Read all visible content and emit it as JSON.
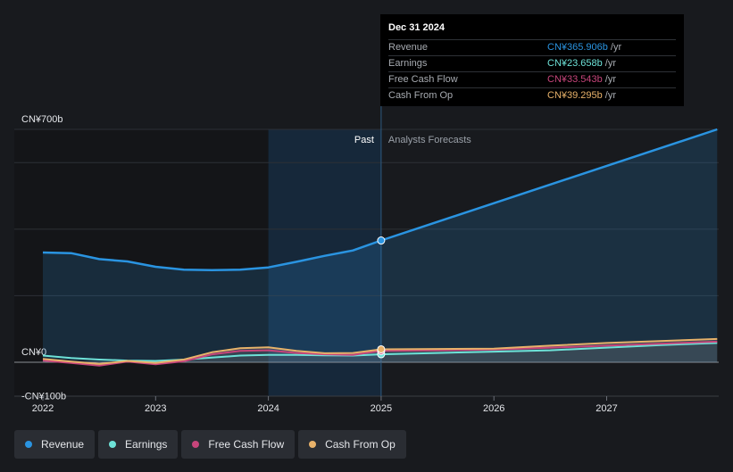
{
  "colors": {
    "revenue": "#2a94e1",
    "earnings": "#6ee2d8",
    "free_cash_flow": "#c7457b",
    "cash_from_op": "#e8b26a",
    "past_highlight": "#163552",
    "grid": "#2d3036",
    "text": "#d0d3d8"
  },
  "chart_data": {
    "type": "line",
    "title": "",
    "xlabel": "",
    "ylabel": "",
    "x_ticks": [
      "2022",
      "2023",
      "2024",
      "2025",
      "2026",
      "2027"
    ],
    "xlim": [
      2021.75,
      2027.98
    ],
    "ylim": [
      -100,
      700
    ],
    "y_ticks": [
      {
        "value": 700,
        "label": "CN¥700b"
      },
      {
        "value": 0,
        "label": "CN¥0"
      },
      {
        "value": -100,
        "label": "-CN¥100b"
      }
    ],
    "gridlines": [
      700,
      600,
      400,
      200
    ],
    "units": "CN¥ billions",
    "past_label": "Past",
    "forecast_label": "Analysts Forecasts",
    "past_end": 2025.0,
    "highlight_start": 2024.0,
    "series": [
      {
        "name": "Revenue",
        "key": "revenue",
        "values": [
          [
            2022.0,
            330
          ],
          [
            2022.25,
            328
          ],
          [
            2022.5,
            310
          ],
          [
            2022.75,
            303
          ],
          [
            2023.0,
            287
          ],
          [
            2023.25,
            278
          ],
          [
            2023.5,
            277
          ],
          [
            2023.75,
            278
          ],
          [
            2024.0,
            285
          ],
          [
            2024.25,
            302
          ],
          [
            2024.5,
            320
          ],
          [
            2024.75,
            336
          ],
          [
            2025.0,
            366
          ],
          [
            2025.25,
            390
          ],
          [
            2025.5,
            410
          ],
          [
            2026.0,
            453
          ],
          [
            2026.5,
            495
          ],
          [
            2027.0,
            538
          ],
          [
            2027.5,
            580
          ],
          [
            2027.98,
            700
          ]
        ],
        "forecast_line": [
          [
            2025.0,
            366
          ],
          [
            2027.98,
            700
          ]
        ]
      },
      {
        "name": "Earnings",
        "key": "earnings",
        "values": [
          [
            2022.0,
            20
          ],
          [
            2022.25,
            13
          ],
          [
            2022.5,
            8
          ],
          [
            2022.75,
            5
          ],
          [
            2023.0,
            4
          ],
          [
            2023.25,
            8
          ],
          [
            2023.5,
            14
          ],
          [
            2023.75,
            20
          ],
          [
            2024.0,
            22
          ],
          [
            2024.25,
            22
          ],
          [
            2024.5,
            21
          ],
          [
            2024.75,
            20
          ],
          [
            2025.0,
            24
          ],
          [
            2025.5,
            28
          ],
          [
            2026.0,
            32
          ],
          [
            2026.5,
            36
          ],
          [
            2027.0,
            44
          ],
          [
            2027.5,
            52
          ],
          [
            2027.98,
            58
          ]
        ]
      },
      {
        "name": "Free Cash Flow",
        "key": "free_cash_flow",
        "values": [
          [
            2022.0,
            5
          ],
          [
            2022.25,
            -2
          ],
          [
            2022.5,
            -10
          ],
          [
            2022.75,
            2
          ],
          [
            2023.0,
            -6
          ],
          [
            2023.25,
            3
          ],
          [
            2023.5,
            24
          ],
          [
            2023.75,
            34
          ],
          [
            2024.0,
            36
          ],
          [
            2024.25,
            28
          ],
          [
            2024.5,
            24
          ],
          [
            2024.75,
            22
          ],
          [
            2025.0,
            34
          ],
          [
            2025.5,
            36
          ],
          [
            2026.0,
            38
          ],
          [
            2026.5,
            44
          ],
          [
            2027.0,
            50
          ],
          [
            2027.5,
            56
          ],
          [
            2027.98,
            62
          ]
        ]
      },
      {
        "name": "Cash From Op",
        "key": "cash_from_op",
        "values": [
          [
            2022.0,
            10
          ],
          [
            2022.25,
            2
          ],
          [
            2022.5,
            -5
          ],
          [
            2022.75,
            4
          ],
          [
            2023.0,
            -2
          ],
          [
            2023.25,
            8
          ],
          [
            2023.5,
            30
          ],
          [
            2023.75,
            42
          ],
          [
            2024.0,
            45
          ],
          [
            2024.25,
            34
          ],
          [
            2024.5,
            27
          ],
          [
            2024.75,
            28
          ],
          [
            2025.0,
            39
          ],
          [
            2025.5,
            40
          ],
          [
            2026.0,
            41
          ],
          [
            2026.5,
            50
          ],
          [
            2027.0,
            58
          ],
          [
            2027.5,
            64
          ],
          [
            2027.98,
            70
          ]
        ]
      }
    ]
  },
  "tooltip": {
    "date": "Dec 31 2024",
    "rows": [
      {
        "label": "Revenue",
        "value": "CN¥365.906b",
        "unit": "/yr",
        "key": "revenue"
      },
      {
        "label": "Earnings",
        "value": "CN¥23.658b",
        "unit": "/yr",
        "key": "earnings"
      },
      {
        "label": "Free Cash Flow",
        "value": "CN¥33.543b",
        "unit": "/yr",
        "key": "free_cash_flow"
      },
      {
        "label": "Cash From Op",
        "value": "CN¥39.295b",
        "unit": "/yr",
        "key": "cash_from_op"
      }
    ]
  },
  "legend": [
    {
      "label": "Revenue",
      "key": "revenue"
    },
    {
      "label": "Earnings",
      "key": "earnings"
    },
    {
      "label": "Free Cash Flow",
      "key": "free_cash_flow"
    },
    {
      "label": "Cash From Op",
      "key": "cash_from_op"
    }
  ]
}
